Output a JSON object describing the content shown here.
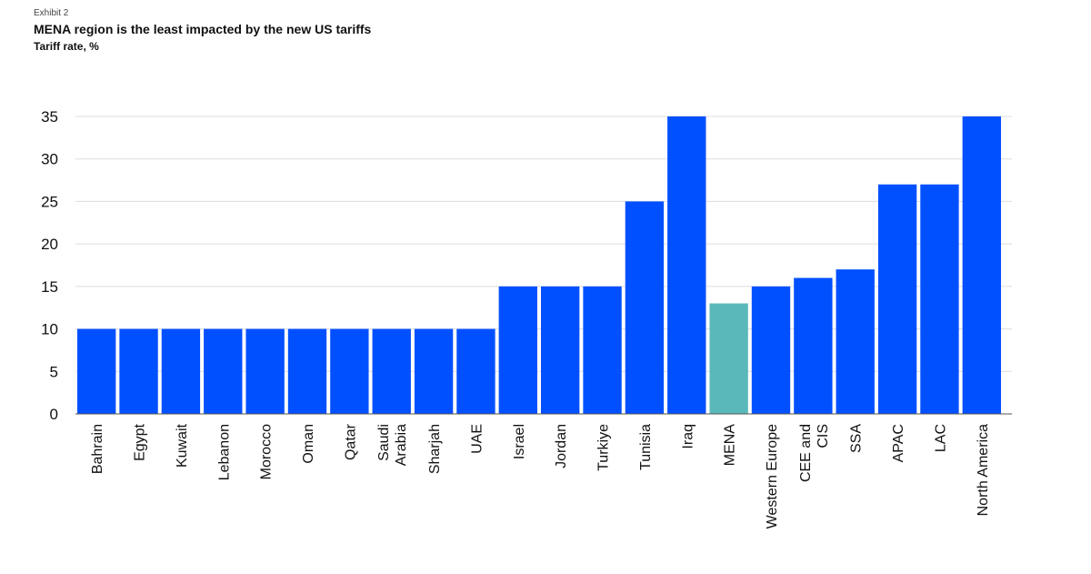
{
  "header": {
    "exhibit": "Exhibit 2",
    "title": "MENA region is the least impacted by the new US tariffs",
    "subtitle": "Tariff rate, %"
  },
  "colors": {
    "bar": "#0050FF",
    "highlight": "#5BB8BA",
    "grid": "#DDDDDD",
    "axis": "#555555"
  },
  "chart_data": {
    "type": "bar",
    "title": "MENA region is the least impacted by the new US tariffs",
    "ylabel": "Tariff rate, %",
    "xlabel": "",
    "ylim": [
      0,
      35
    ],
    "yticks": [
      0,
      5,
      10,
      15,
      20,
      25,
      30,
      35
    ],
    "grid": true,
    "categories": [
      [
        "Bahrain"
      ],
      [
        "Egypt"
      ],
      [
        "Kuwait"
      ],
      [
        "Lebanon"
      ],
      [
        "Morocco"
      ],
      [
        "Oman"
      ],
      [
        "Qatar"
      ],
      [
        "Saudi",
        "Arabia"
      ],
      [
        "Sharjah"
      ],
      [
        "UAE"
      ],
      [
        "Israel"
      ],
      [
        "Jordan"
      ],
      [
        "Turkiye"
      ],
      [
        "Tunisia"
      ],
      [
        "Iraq"
      ],
      [
        "MENA"
      ],
      [
        "Western Europe"
      ],
      [
        "CEE and",
        "CIS"
      ],
      [
        "SSA"
      ],
      [
        "APAC"
      ],
      [
        "LAC"
      ],
      [
        "North America"
      ]
    ],
    "values": [
      10,
      10,
      10,
      10,
      10,
      10,
      10,
      10,
      10,
      10,
      15,
      15,
      15,
      25,
      35,
      13,
      15,
      16,
      17,
      27,
      27,
      35
    ],
    "highlight_category": "MENA"
  }
}
